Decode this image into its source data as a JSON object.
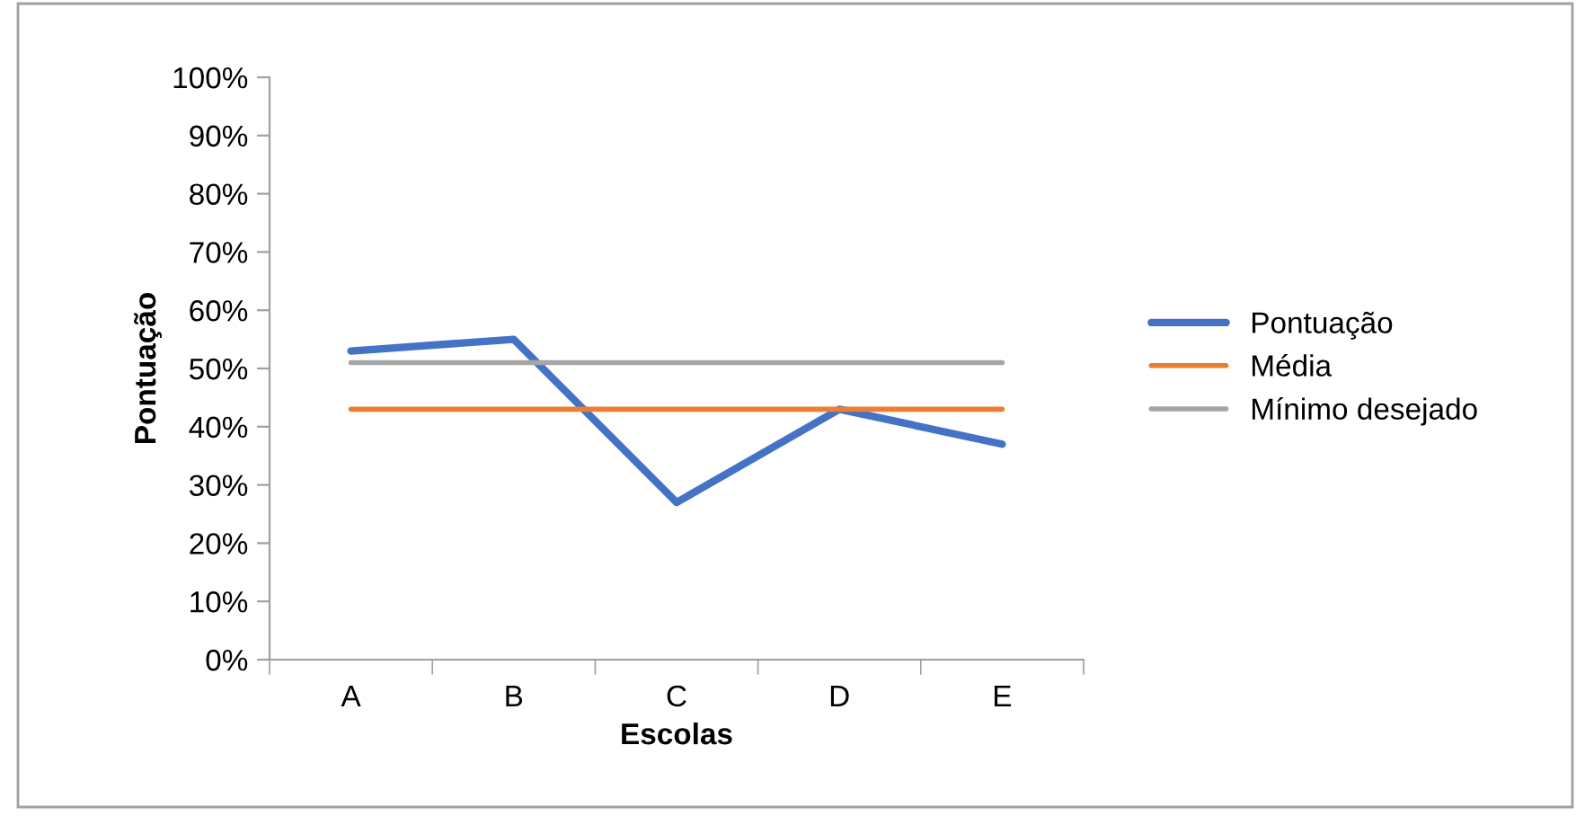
{
  "chart_data": {
    "type": "line",
    "xlabel": "Escolas",
    "ylabel": "Pontuação",
    "categories": [
      "A",
      "B",
      "C",
      "D",
      "E"
    ],
    "series": [
      {
        "name": "Pontuação",
        "color": "#4472c4",
        "values": [
          53,
          55,
          27,
          43,
          37
        ]
      },
      {
        "name": "Média",
        "color": "#ed7d31",
        "values": [
          43,
          43,
          43,
          43,
          43
        ]
      },
      {
        "name": "Mínimo desejado",
        "color": "#a5a5a5",
        "values": [
          51,
          51,
          51,
          51,
          51
        ]
      }
    ],
    "ylim": [
      0,
      100
    ],
    "yticks": [
      {
        "value": 0,
        "label": "0%"
      },
      {
        "value": 10,
        "label": "10%"
      },
      {
        "value": 20,
        "label": "20%"
      },
      {
        "value": 30,
        "label": "30%"
      },
      {
        "value": 40,
        "label": "40%"
      },
      {
        "value": 50,
        "label": "50%"
      },
      {
        "value": 60,
        "label": "60%"
      },
      {
        "value": 70,
        "label": "70%"
      },
      {
        "value": 80,
        "label": "80%"
      },
      {
        "value": 90,
        "label": "90%"
      },
      {
        "value": 100,
        "label": "100%"
      }
    ],
    "grid": false,
    "legend": "right",
    "marker": "none",
    "line_style": "solid"
  }
}
